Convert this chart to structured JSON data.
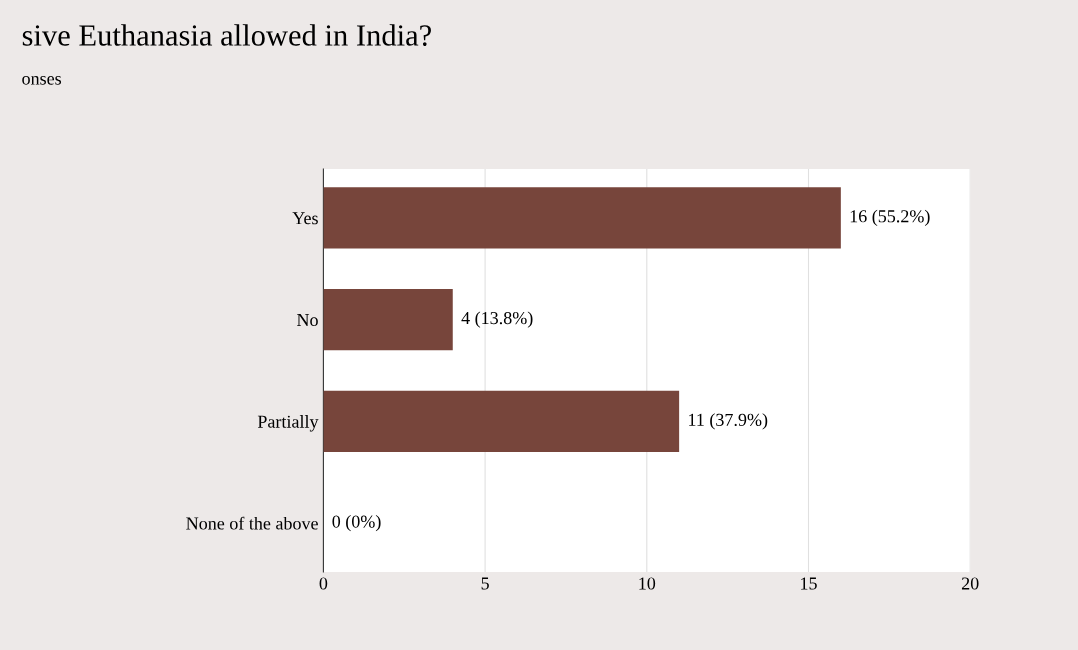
{
  "chart_data": {
    "type": "bar",
    "orientation": "horizontal",
    "title": "sive Euthanasia allowed in India?",
    "subtitle": "onses",
    "categories": [
      "Yes",
      "No",
      "Partially",
      "None of the above"
    ],
    "values": [
      16,
      4,
      11,
      0
    ],
    "value_labels": [
      "16 (55.2%)",
      "4 (13.8%)",
      "11 (37.9%)",
      "0 (0%)"
    ],
    "color": "#77453b",
    "xlim": [
      0,
      20
    ],
    "xticks": [
      0,
      5,
      10,
      15,
      20
    ],
    "grid": "x"
  }
}
